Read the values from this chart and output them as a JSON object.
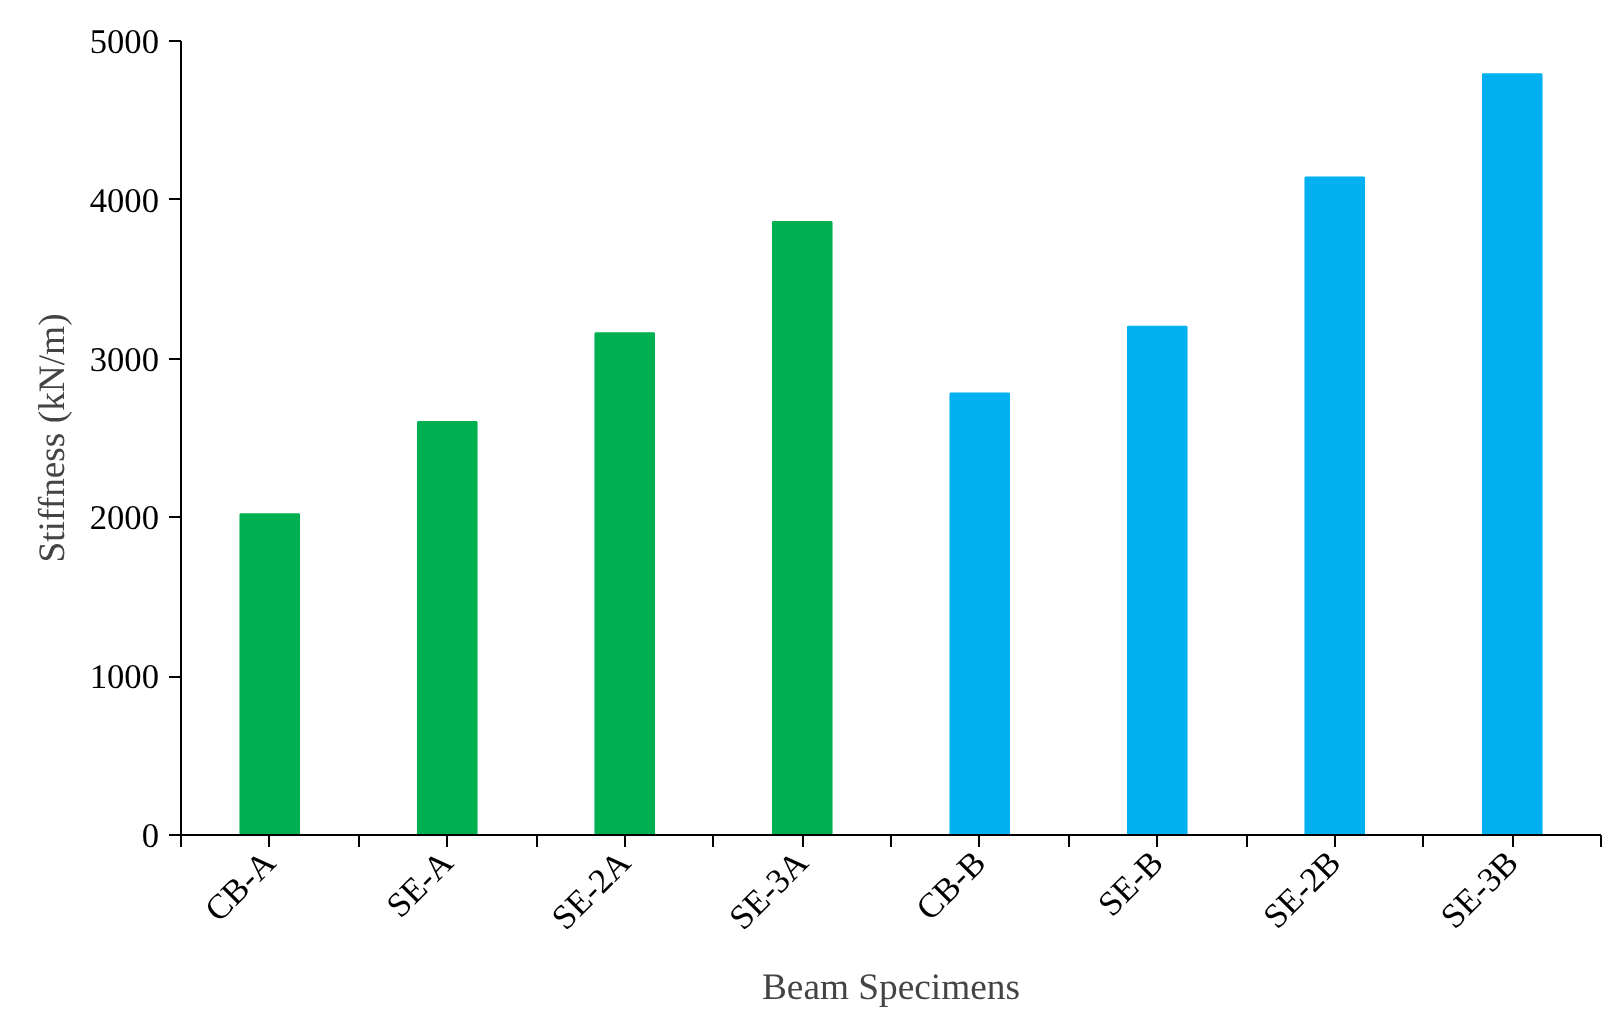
{
  "chart_data": {
    "type": "bar",
    "xlabel": "Beam Specimens",
    "ylabel": "Stiffness (kN/m)",
    "categories": [
      "CB-A",
      "SE-A",
      "SE-2A",
      "SE-3A",
      "CB-B",
      "SE-B",
      "SE-2B",
      "SE-3B"
    ],
    "values": [
      2020,
      2600,
      3160,
      3860,
      2780,
      3200,
      4140,
      4790
    ],
    "colors": [
      "#00b050",
      "#00b050",
      "#00b050",
      "#00b050",
      "#00b0f0",
      "#00b0f0",
      "#00b0f0",
      "#00b0f0"
    ],
    "ylim": [
      0,
      5000
    ],
    "yticks": [
      0,
      1000,
      2000,
      3000,
      4000,
      5000
    ],
    "grid": false,
    "legend": false
  }
}
